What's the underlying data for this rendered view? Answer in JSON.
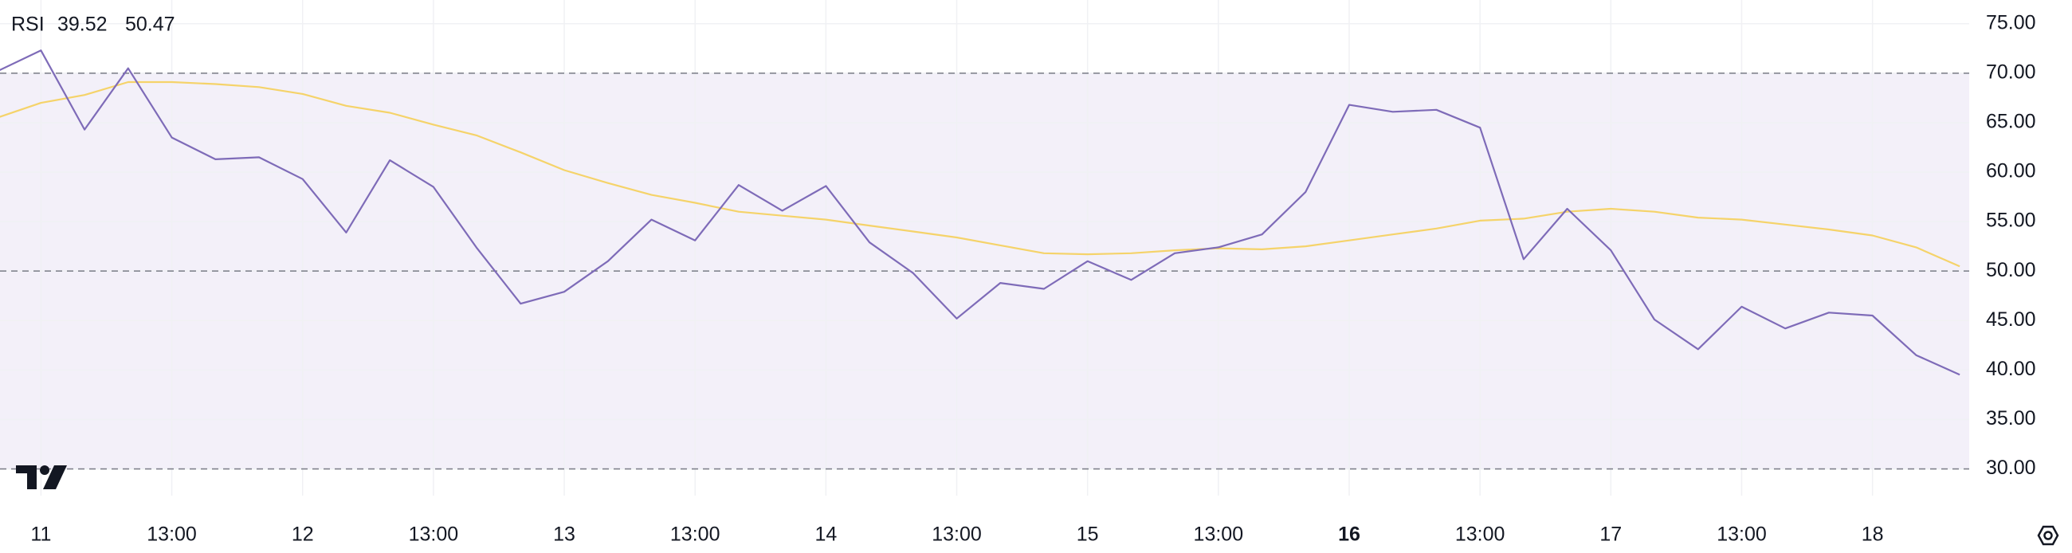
{
  "chart_data": {
    "type": "line",
    "title": "RSI",
    "categories": [
      null,
      "11",
      null,
      null,
      "13:00",
      null,
      null,
      "12",
      null,
      null,
      "13:00",
      null,
      null,
      "13",
      null,
      null,
      "13:00",
      null,
      null,
      "14",
      null,
      null,
      "13:00",
      null,
      null,
      "15",
      null,
      null,
      "13:00",
      null,
      null,
      "16",
      null,
      null,
      "13:00",
      null,
      null,
      "17",
      null,
      null,
      "13:00",
      null,
      null,
      "18",
      null,
      null
    ],
    "bold_category_index": 31,
    "series": [
      {
        "color": "#7e6bb8",
        "values": [
          70.2,
          72.3,
          64.3,
          70.5,
          63.5,
          61.3,
          61.5,
          59.3,
          53.9,
          61.2,
          58.5,
          52.3,
          46.7,
          47.9,
          51,
          55.2,
          53.1,
          58.7,
          56.1,
          58.6,
          52.9,
          49.8,
          45.2,
          48.8,
          48.2,
          51,
          49.1,
          51.8,
          52.4,
          53.7,
          58,
          66.8,
          66.1,
          66.3,
          64.5,
          51.2,
          56.3,
          52.1,
          45.1,
          42.1,
          46.4,
          44.2,
          45.8,
          45.5,
          41.5,
          39.52
        ]
      },
      {
        "color": "#f5d36a",
        "values": [
          65.5,
          67,
          67.8,
          69.1,
          69.1,
          68.9,
          68.6,
          67.9,
          66.7,
          66,
          64.8,
          63.7,
          62,
          60.2,
          58.9,
          57.7,
          56.9,
          56,
          55.6,
          55.2,
          54.6,
          54,
          53.4,
          52.6,
          51.8,
          51.7,
          51.8,
          52.1,
          52.3,
          52.2,
          52.5,
          53.1,
          53.7,
          54.3,
          55.1,
          55.3,
          56,
          56.3,
          56,
          55.4,
          55.2,
          54.7,
          54.2,
          53.6,
          52.4,
          50.47
        ]
      }
    ],
    "ylim": [
      27.3,
      77.4
    ],
    "yticks": [
      {
        "value": 30,
        "label": "30.00"
      },
      {
        "value": 35,
        "label": "35.00"
      },
      {
        "value": 40,
        "label": "40.00"
      },
      {
        "value": 45,
        "label": "45.00"
      },
      {
        "value": 50,
        "label": "50.00"
      },
      {
        "value": 55,
        "label": "55.00"
      },
      {
        "value": 60,
        "label": "60.00"
      },
      {
        "value": 65,
        "label": "65.00"
      },
      {
        "value": 70,
        "label": "70.00"
      },
      {
        "value": 75,
        "label": "75.00"
      }
    ],
    "band": [
      30,
      70
    ],
    "band_color": "rgba(126,87,194,0.09)",
    "midline": 50,
    "grid": true
  }
}
